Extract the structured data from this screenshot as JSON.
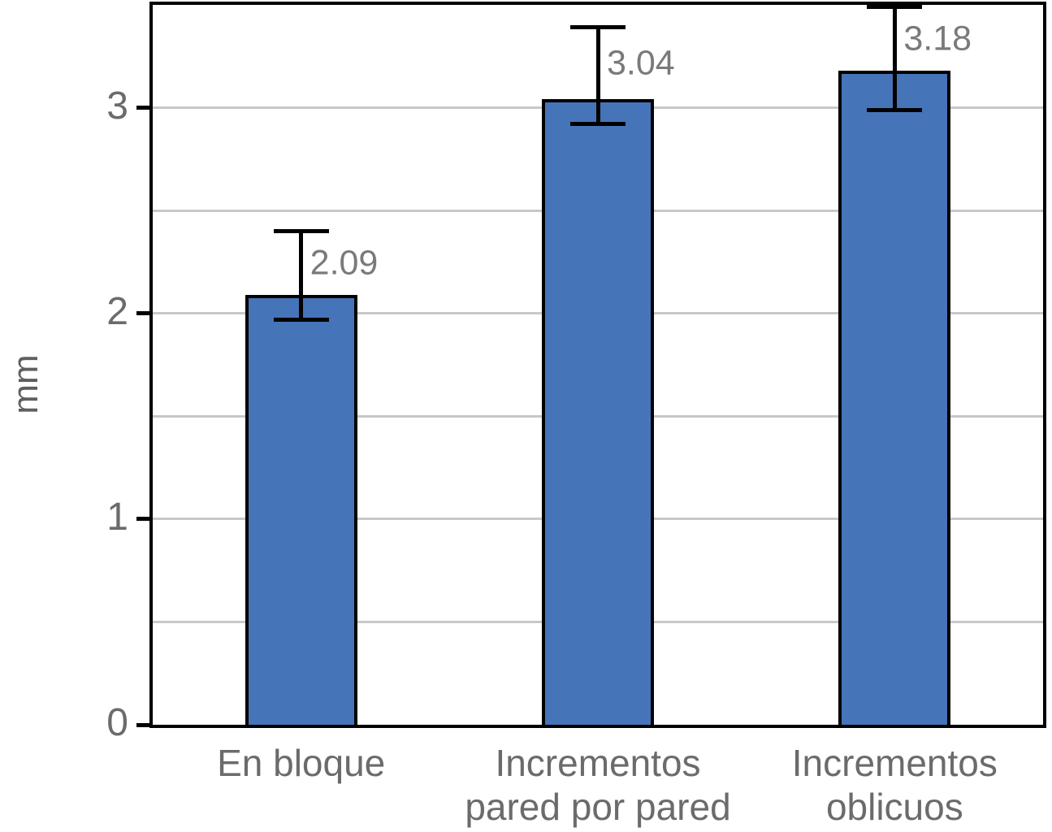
{
  "chart_data": {
    "type": "bar",
    "categories": [
      "En bloque",
      "Incrementos\npared por pared",
      "Incrementos\noblicuos"
    ],
    "values": [
      2.09,
      3.04,
      3.18
    ],
    "data_labels": [
      "2.09",
      "3.04",
      "3.18"
    ],
    "error_bars": [
      {
        "top": 2.4,
        "bottom": 1.97
      },
      {
        "top": 3.39,
        "bottom": 2.92
      },
      {
        "top": 3.49,
        "bottom": 2.99
      }
    ],
    "title": "",
    "xlabel": "",
    "ylabel": "mm",
    "ylim": [
      0,
      3.5
    ],
    "yticks": [
      0,
      1,
      2,
      3
    ],
    "gridline_step": 0.5,
    "grid": true,
    "legend": false,
    "colors": {
      "bar_fill": "#4674b9",
      "bar_border": "#000000",
      "error_bar": "#000000",
      "gridline": "#c8c8c8",
      "axis": "#000000",
      "tick_text": "#6b6b6b",
      "data_label_text": "#7a7a7a",
      "axis_title_text": "#5f5f5f"
    }
  }
}
